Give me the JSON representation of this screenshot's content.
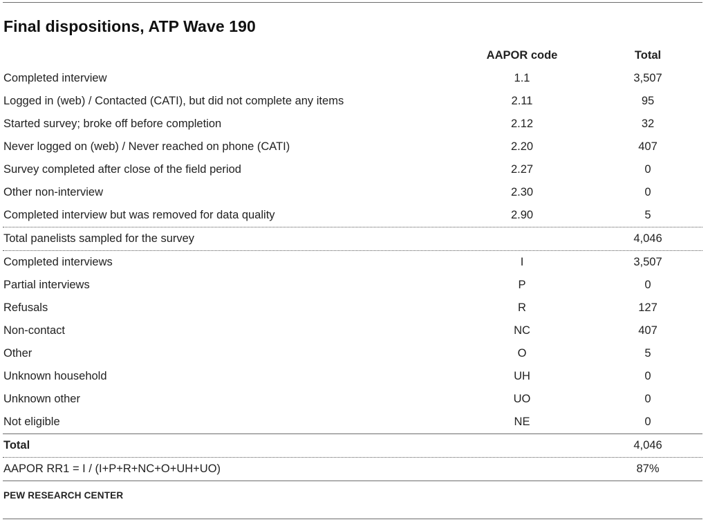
{
  "title": "Final dispositions, ATP Wave 190",
  "header": {
    "label": "",
    "code": "AAPOR code",
    "total": "Total"
  },
  "rows": [
    {
      "label": "Completed interview",
      "code": "1.1",
      "total": "3,507"
    },
    {
      "label": "Logged in (web) / Contacted (CATI), but did not complete any items",
      "code": "2.11",
      "total": "95"
    },
    {
      "label": "Started survey; broke off before completion",
      "code": "2.12",
      "total": "32"
    },
    {
      "label": "Never logged on (web) / Never reached on phone (CATI)",
      "code": "2.20",
      "total": "407"
    },
    {
      "label": "Survey completed after close of the field period",
      "code": "2.27",
      "total": "0"
    },
    {
      "label": "Other non-interview",
      "code": "2.30",
      "total": "0"
    },
    {
      "label": "Completed interview but was removed for data quality",
      "code": "2.90",
      "total": "5"
    }
  ],
  "sampled": {
    "label": "Total panelists sampled for the survey",
    "code": "",
    "total": "4,046"
  },
  "rows2": [
    {
      "label": "Completed interviews",
      "code": "I",
      "total": "3,507"
    },
    {
      "label": "Partial interviews",
      "code": "P",
      "total": "0"
    },
    {
      "label": "Refusals",
      "code": "R",
      "total": "127"
    },
    {
      "label": "Non-contact",
      "code": "NC",
      "total": "407"
    },
    {
      "label": "Other",
      "code": "O",
      "total": "5"
    },
    {
      "label": "Unknown household",
      "code": "UH",
      "total": "0"
    },
    {
      "label": "Unknown other",
      "code": "UO",
      "total": "0"
    },
    {
      "label": "Not eligible",
      "code": "NE",
      "total": "0"
    }
  ],
  "total_row": {
    "label": "Total",
    "code": "",
    "total": "4,046"
  },
  "rr1_row": {
    "label": "AAPOR RR1 = I / (I+P+R+NC+O+UH+UO)",
    "code": "",
    "total": "87%"
  },
  "footer": "PEW RESEARCH CENTER"
}
